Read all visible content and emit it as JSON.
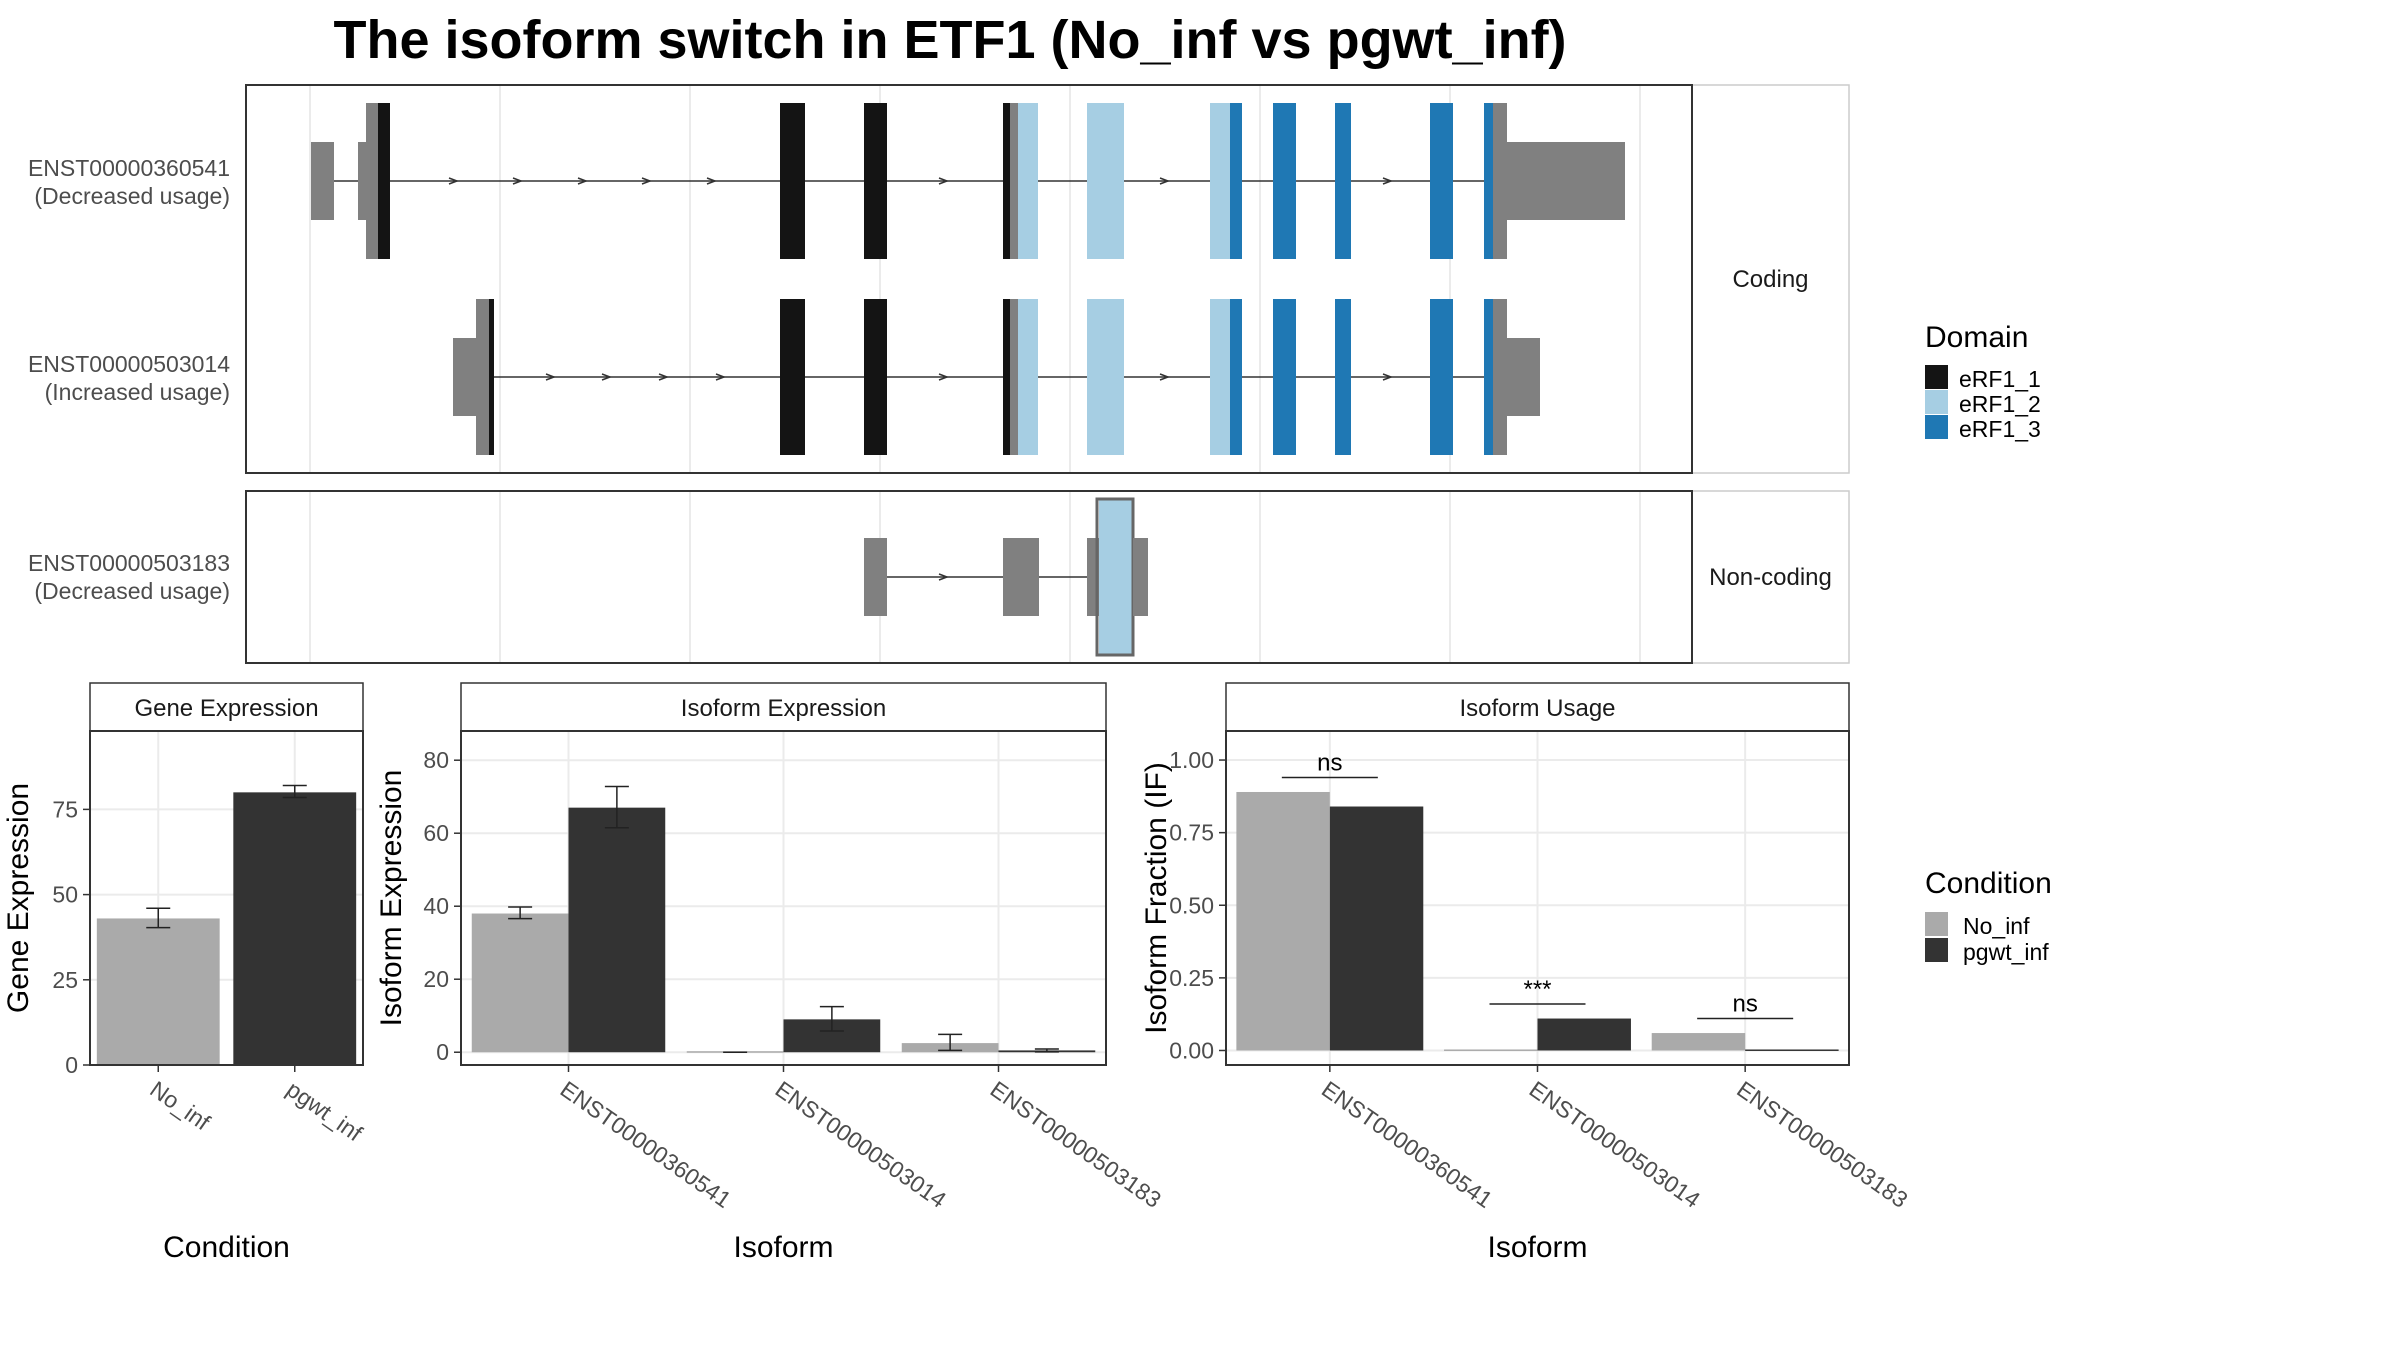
{
  "title": "The isoform switch in ETF1 (No_inf vs pgwt_inf)",
  "colors": {
    "eRF1_1": "#141414",
    "eRF1_2": "#a6cee3",
    "eRF1_3": "#1f78b4",
    "utr": "#808080",
    "No_inf": "#aaaaaa",
    "pgwt_inf": "#333333"
  },
  "structure": {
    "groups": [
      {
        "strip": "Coding",
        "isoforms": [
          {
            "id": "ENST00000360541",
            "usage": "(Decreased usage)",
            "utr_left": [
              [
                193,
                198
              ]
            ],
            "utr_right": [
              [
                1010,
                1048
              ]
            ],
            "cds_start": 225,
            "cds_end": 962,
            "intron_span": [
              198,
              1010
            ]
          },
          {
            "id": "ENST00000503014",
            "usage": "(Increased usage)",
            "utr_left": [
              [
                283,
                298
              ]
            ],
            "utr_right": [
              [
                962,
                992
              ]
            ],
            "cds_start": 298,
            "cds_end": 962,
            "intron_span": [
              283,
              992
            ]
          }
        ]
      },
      {
        "strip": "Non-coding",
        "isoforms": [
          {
            "id": "ENST00000503183",
            "usage": "(Decreased usage)",
            "noncoding": true
          }
        ]
      }
    ],
    "domain_legend": {
      "title": "Domain",
      "items": [
        "eRF1_1",
        "eRF1_2",
        "eRF1_3"
      ]
    }
  },
  "chart_data": [
    {
      "type": "bar",
      "strip": "Gene Expression",
      "xlabel": "Condition",
      "ylabel": "Gene Expression",
      "categories": [
        "No_inf",
        "pgwt_inf"
      ],
      "values": [
        43,
        80
      ],
      "errors": [
        [
          40.3,
          46.0
        ],
        [
          78.5,
          82.0
        ]
      ],
      "ylim": [
        0,
        98
      ],
      "yticks": [
        0,
        25,
        50,
        75
      ]
    },
    {
      "type": "bar",
      "strip": "Isoform Expression",
      "xlabel": "Isoform",
      "ylabel": "Isoform Expression",
      "categories": [
        "ENST00000360541",
        "ENST00000503014",
        "ENST00000503183"
      ],
      "series": [
        {
          "name": "No_inf",
          "values": [
            38,
            0,
            2.5
          ],
          "errors": [
            [
              36.6,
              39.8
            ],
            [
              0,
              0
            ],
            [
              0.5,
              4.9
            ]
          ]
        },
        {
          "name": "pgwt_inf",
          "values": [
            67,
            9,
            0.5
          ],
          "errors": [
            [
              61.5,
              72.8
            ],
            [
              5.8,
              12.5
            ],
            [
              0.1,
              0.9
            ]
          ]
        }
      ],
      "ylim": [
        -3.5,
        88
      ],
      "yticks": [
        0,
        20,
        40,
        60,
        80
      ]
    },
    {
      "type": "bar",
      "strip": "Isoform Usage",
      "xlabel": "Isoform",
      "ylabel": "Isoform Fraction (IF)",
      "categories": [
        "ENST00000360541",
        "ENST00000503014",
        "ENST00000503183"
      ],
      "series": [
        {
          "name": "No_inf",
          "values": [
            0.89,
            0.0,
            0.06
          ]
        },
        {
          "name": "pgwt_inf",
          "values": [
            0.84,
            0.11,
            0.0
          ]
        }
      ],
      "significance": [
        "ns",
        "***",
        "ns"
      ],
      "ylim": [
        -0.05,
        1.1
      ],
      "yticks": [
        "0.00",
        "0.25",
        "0.50",
        "0.75",
        "1.00"
      ]
    }
  ],
  "condition_legend": {
    "title": "Condition",
    "items": [
      "No_inf",
      "pgwt_inf"
    ]
  }
}
